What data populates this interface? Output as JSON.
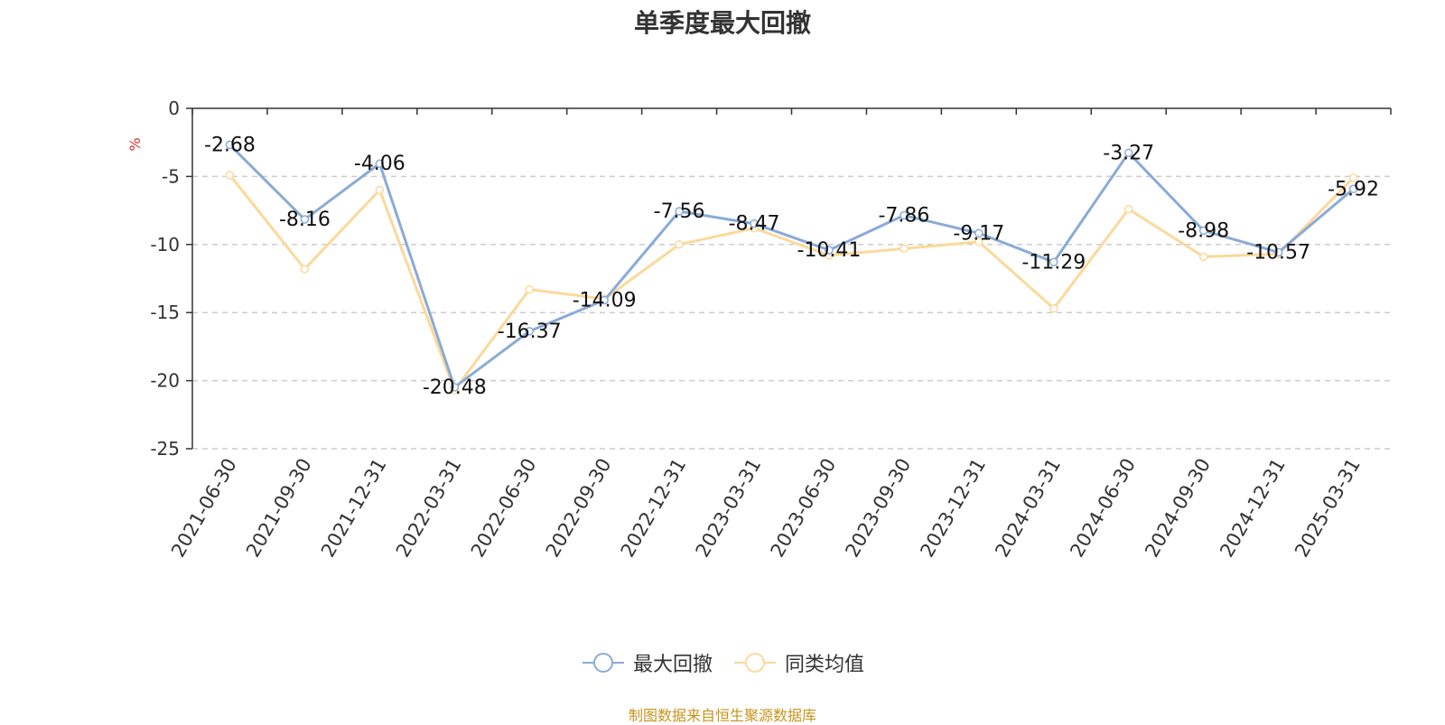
{
  "chart_data": {
    "type": "line",
    "title": "单季度最大回撤",
    "ylabel": "%",
    "ylim": [
      -25,
      0
    ],
    "yticks": [
      0,
      -5,
      -10,
      -15,
      -20,
      -25
    ],
    "grid": true,
    "legend_position": "bottom",
    "categories": [
      "2021-06-30",
      "2021-09-30",
      "2021-12-31",
      "2022-03-31",
      "2022-06-30",
      "2022-09-30",
      "2022-12-31",
      "2023-03-31",
      "2023-06-30",
      "2023-09-30",
      "2023-12-31",
      "2024-03-31",
      "2024-06-30",
      "2024-09-30",
      "2024-12-31",
      "2025-03-31"
    ],
    "series": [
      {
        "name": "最大回撤",
        "color": "#8aaad8",
        "labels": true,
        "values": [
          -2.68,
          -8.16,
          -4.06,
          -20.48,
          -16.37,
          -14.09,
          -7.56,
          -8.47,
          -10.41,
          -7.86,
          -9.17,
          -11.29,
          -3.27,
          -8.98,
          -10.57,
          -5.92
        ]
      },
      {
        "name": "同类均值",
        "color": "#fbd99a",
        "labels": false,
        "values": [
          -4.9,
          -11.8,
          -6.0,
          -20.7,
          -13.3,
          -14.0,
          -10.0,
          -8.8,
          -10.8,
          -10.3,
          -9.8,
          -14.7,
          -7.4,
          -10.9,
          -10.7,
          -5.1
        ]
      }
    ]
  },
  "source_note": "制图数据来自恒生聚源数据库"
}
